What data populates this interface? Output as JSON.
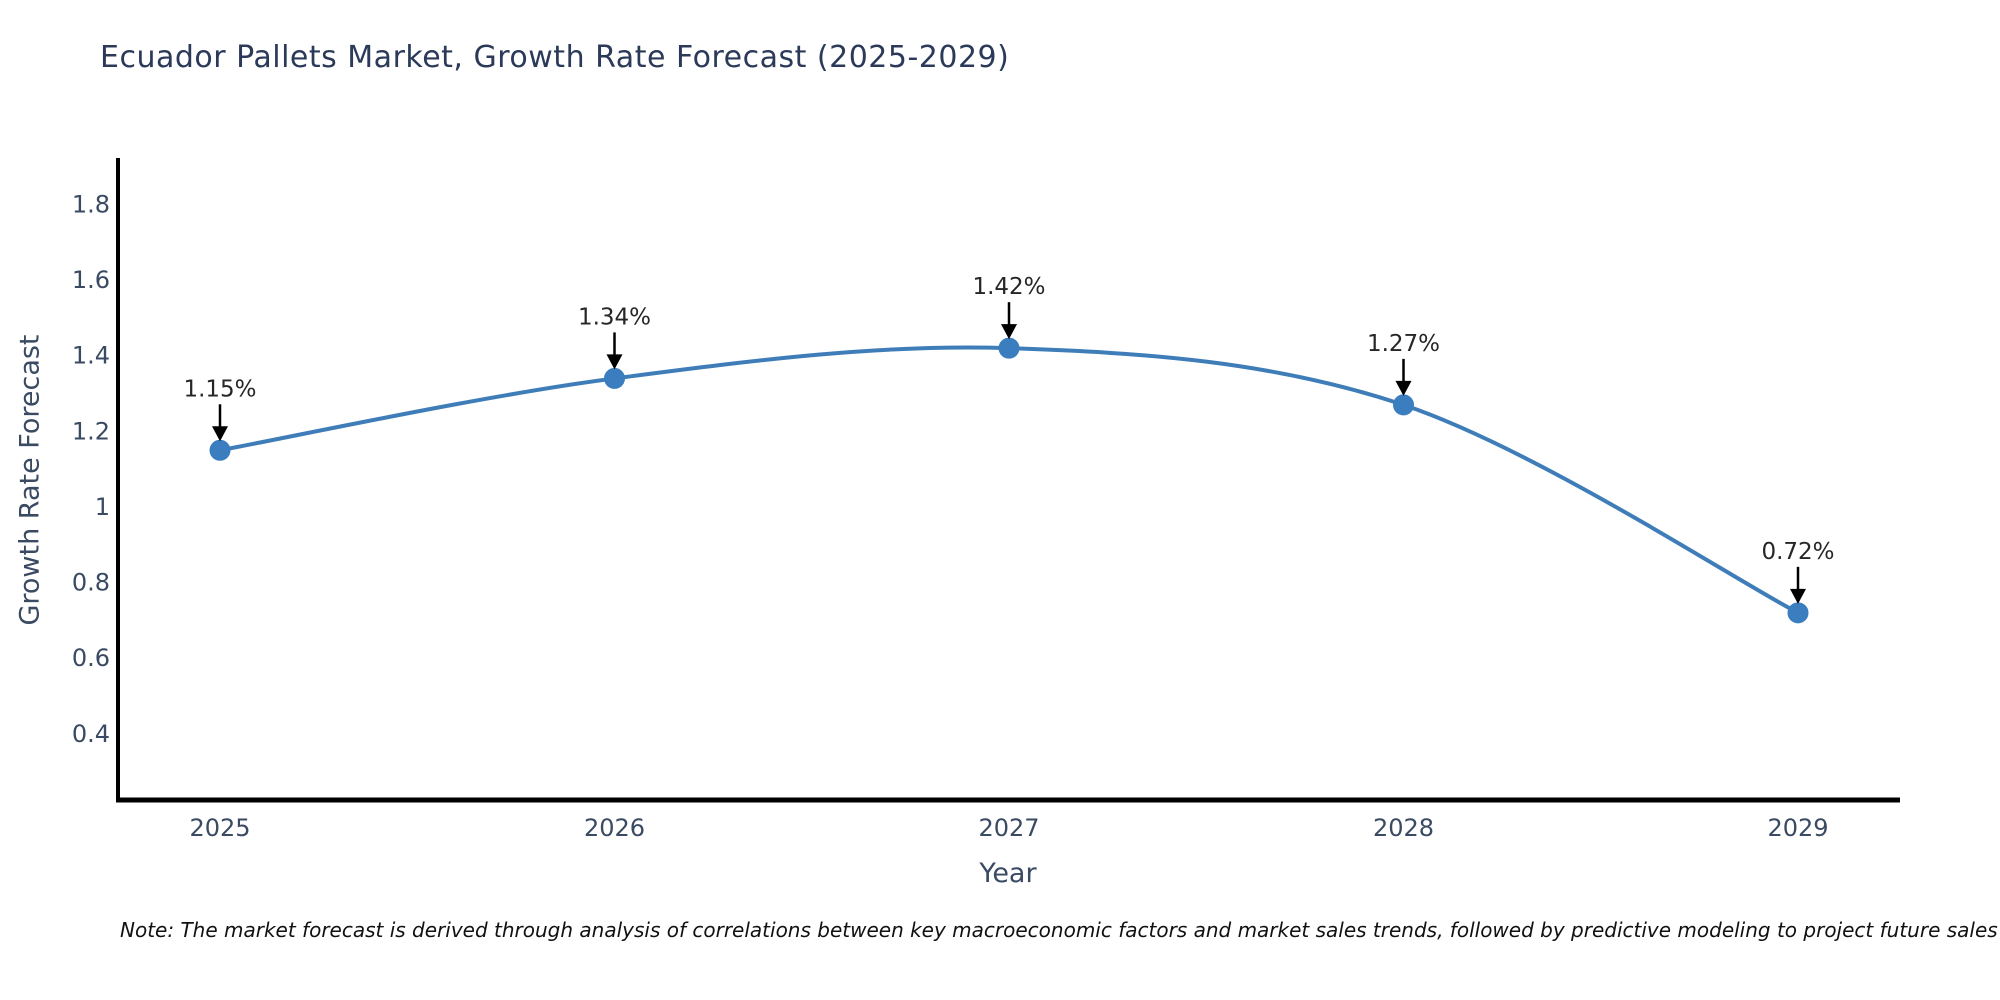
{
  "page": {
    "background": "#ffffff",
    "note": "Note: The market forecast is derived through analysis of correlations between key macroeconomic factors and market sales trends, followed by predictive modeling to project future sales"
  },
  "chart_data": {
    "type": "line",
    "title": "Ecuador Pallets Market, Growth Rate Forecast (2025-2029)",
    "xlabel": "Year",
    "ylabel": "Growth Rate Forecast",
    "categories": [
      2025,
      2026,
      2027,
      2028,
      2029
    ],
    "series": [
      {
        "name": "Growth Rate Forecast",
        "values": [
          1.15,
          1.34,
          1.42,
          1.27,
          0.72
        ]
      }
    ],
    "point_labels": [
      "1.15%",
      "1.34%",
      "1.42%",
      "1.27%",
      "0.72%"
    ],
    "yticks": [
      0.4,
      0.6,
      0.8,
      1,
      1.2,
      1.4,
      1.6,
      1.8
    ],
    "ylim": [
      0.225,
      1.923
    ],
    "grid": false,
    "legend_position": "none",
    "annotations": "value labels with downward black arrows above each point",
    "colors": {
      "line": "#3f7db9",
      "marker": "#3a7ebf",
      "arrow": "#000000",
      "axis": "#000000",
      "tick_label": "#3b4a63",
      "title": "#2c3a5a",
      "note": "#111111"
    }
  }
}
